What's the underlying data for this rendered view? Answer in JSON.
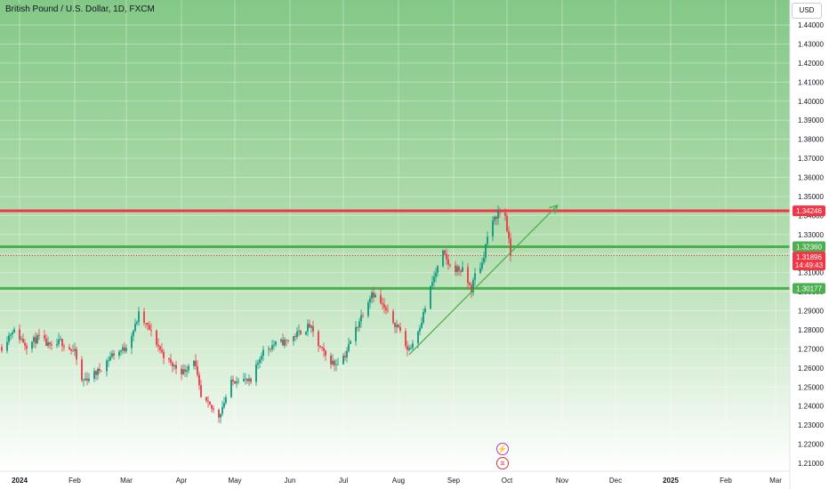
{
  "header": {
    "title": "British Pound / U.S. Dollar, 1D, FXCM",
    "currency_button": "USD"
  },
  "colors": {
    "up": "#089981",
    "down": "#f23645",
    "resistance": "#f23645",
    "support": "#4caf50",
    "trend": "#4caf50",
    "price_dotted": "#f23645",
    "bg_top": "#84c887",
    "bg_bottom": "#ffffff"
  },
  "chart_data": {
    "type": "candlestick",
    "ylim": [
      1.2058,
      1.4531
    ],
    "y_ticks": [
      "1.21000",
      "1.22000",
      "1.23000",
      "1.24000",
      "1.25000",
      "1.26000",
      "1.27000",
      "1.28000",
      "1.29000",
      "1.30000",
      "1.31000",
      "1.32000",
      "1.33000",
      "1.34000",
      "1.35000",
      "1.36000",
      "1.37000",
      "1.38000",
      "1.39000",
      "1.40000",
      "1.41000",
      "1.42000",
      "1.43000",
      "1.44000"
    ],
    "x_ticks": [
      {
        "label": "2024",
        "date": "2024-01-01"
      },
      {
        "label": "Feb",
        "date": "2024-02-01"
      },
      {
        "label": "Mar",
        "date": "2024-03-01"
      },
      {
        "label": "Apr",
        "date": "2024-04-01"
      },
      {
        "label": "May",
        "date": "2024-05-01"
      },
      {
        "label": "Jun",
        "date": "2024-06-01"
      },
      {
        "label": "Jul",
        "date": "2024-07-01"
      },
      {
        "label": "Aug",
        "date": "2024-08-01"
      },
      {
        "label": "Sep",
        "date": "2024-09-01"
      },
      {
        "label": "Oct",
        "date": "2024-10-01"
      },
      {
        "label": "Nov",
        "date": "2024-11-01"
      },
      {
        "label": "Dec",
        "date": "2024-12-01"
      },
      {
        "label": "2025",
        "date": "2025-01-01"
      },
      {
        "label": "Feb",
        "date": "2025-02-01"
      },
      {
        "label": "Mar",
        "date": "2025-03-01"
      }
    ],
    "price_path": [
      [
        "2023-12-22",
        1.271
      ],
      [
        "2023-12-28",
        1.28
      ],
      [
        "2024-01-05",
        1.272
      ],
      [
        "2024-01-12",
        1.276
      ],
      [
        "2024-01-19",
        1.27
      ],
      [
        "2024-01-24",
        1.274
      ],
      [
        "2024-02-01",
        1.268
      ],
      [
        "2024-02-05",
        1.253
      ],
      [
        "2024-02-14",
        1.258
      ],
      [
        "2024-02-22",
        1.267
      ],
      [
        "2024-02-29",
        1.27
      ],
      [
        "2024-03-06",
        1.282
      ],
      [
        "2024-03-08",
        1.288
      ],
      [
        "2024-03-14",
        1.28
      ],
      [
        "2024-03-21",
        1.268
      ],
      [
        "2024-03-26",
        1.262
      ],
      [
        "2024-04-02",
        1.258
      ],
      [
        "2024-04-08",
        1.265
      ],
      [
        "2024-04-12",
        1.244
      ],
      [
        "2024-04-22",
        1.235
      ],
      [
        "2024-04-29",
        1.252
      ],
      [
        "2024-05-03",
        1.255
      ],
      [
        "2024-05-10",
        1.252
      ],
      [
        "2024-05-16",
        1.268
      ],
      [
        "2024-05-22",
        1.272
      ],
      [
        "2024-05-30",
        1.274
      ],
      [
        "2024-06-07",
        1.279
      ],
      [
        "2024-06-12",
        1.282
      ],
      [
        "2024-06-17",
        1.272
      ],
      [
        "2024-06-21",
        1.266
      ],
      [
        "2024-06-26",
        1.262
      ],
      [
        "2024-07-02",
        1.267
      ],
      [
        "2024-07-10",
        1.285
      ],
      [
        "2024-07-17",
        1.3
      ],
      [
        "2024-07-22",
        1.294
      ],
      [
        "2024-07-26",
        1.288
      ],
      [
        "2024-08-02",
        1.28
      ],
      [
        "2024-08-05",
        1.27
      ],
      [
        "2024-08-08",
        1.271
      ],
      [
        "2024-08-14",
        1.285
      ],
      [
        "2024-08-20",
        1.305
      ],
      [
        "2024-08-26",
        1.32
      ],
      [
        "2024-08-30",
        1.313
      ],
      [
        "2024-09-06",
        1.311
      ],
      [
        "2024-09-11",
        1.301
      ],
      [
        "2024-09-13",
        1.309
      ],
      [
        "2024-09-17",
        1.315
      ],
      [
        "2024-09-20",
        1.329
      ],
      [
        "2024-09-24",
        1.338
      ],
      [
        "2024-09-26",
        1.342
      ],
      [
        "2024-09-30",
        1.34
      ],
      [
        "2024-10-03",
        1.319
      ]
    ],
    "levels": [
      {
        "name": "resistance",
        "value": 1.34246,
        "label": "1.34246"
      },
      {
        "name": "support-1",
        "value": 1.3236,
        "label": "1.32360"
      },
      {
        "name": "support-2",
        "value": 1.30177,
        "label": "1.30177"
      }
    ],
    "current_price": {
      "value": 1.31896,
      "label": "1.31896",
      "countdown": "14:49:43"
    },
    "trend_arrow": {
      "start": [
        "2024-08-07",
        1.267
      ],
      "end": [
        "2024-10-29",
        1.345
      ]
    },
    "events": [
      "bolt-icon",
      "us-flag-icon"
    ]
  }
}
